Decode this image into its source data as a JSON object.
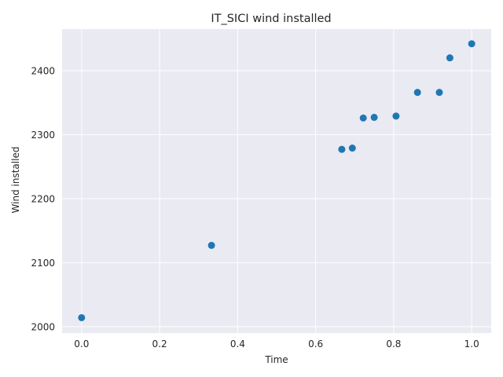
{
  "chart_data": {
    "type": "scatter",
    "title": "IT_SICI wind installed",
    "xlabel": "Time",
    "ylabel": "Wind installed",
    "xlim": [
      -0.05,
      1.05
    ],
    "ylim": [
      1990,
      2465
    ],
    "xticks": [
      0.0,
      0.2,
      0.4,
      0.6,
      0.8,
      1.0
    ],
    "xtick_labels": [
      "0.0",
      "0.2",
      "0.4",
      "0.6",
      "0.8",
      "1.0"
    ],
    "yticks": [
      2000,
      2100,
      2200,
      2300,
      2400
    ],
    "ytick_labels": [
      "2000",
      "2100",
      "2200",
      "2300",
      "2400"
    ],
    "grid": true,
    "background": "#eaeaf2",
    "marker_color": "#1f77b4",
    "x": [
      0.0,
      0.333,
      0.667,
      0.694,
      0.722,
      0.75,
      0.806,
      0.861,
      0.917,
      0.944,
      1.0
    ],
    "y": [
      2014,
      2127,
      2277,
      2279,
      2326,
      2327,
      2329,
      2366,
      2366,
      2420,
      2442
    ]
  }
}
